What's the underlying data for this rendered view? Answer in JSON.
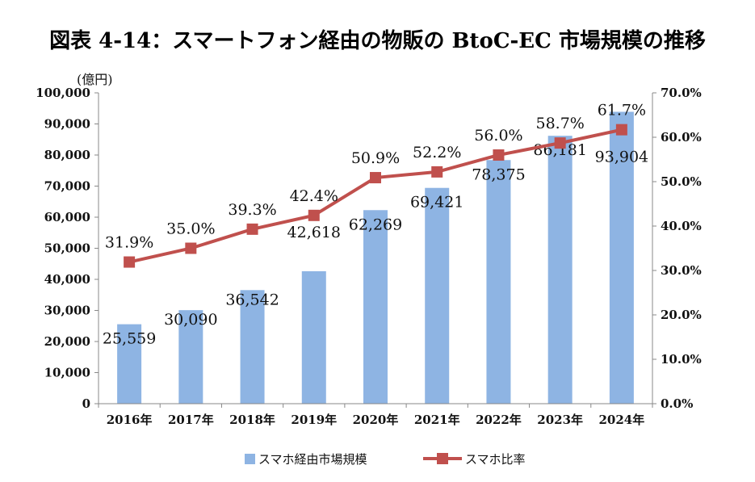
{
  "chart_data": {
    "type": "bar+line",
    "title": "図表 4-14：スマートフォン経由の物販の BtoC-EC 市場規模の推移",
    "y_unit": "(億円)",
    "categories": [
      "2016年",
      "2017年",
      "2018年",
      "2019年",
      "2020年",
      "2021年",
      "2022年",
      "2023年",
      "2024年"
    ],
    "series": [
      {
        "name": "スマホ経由市場規模",
        "type": "bar",
        "axis": "left",
        "color": "#8EB4E3",
        "values": [
          25559,
          30090,
          36542,
          42618,
          62269,
          69421,
          78375,
          86181,
          93904
        ],
        "labels": [
          "25,559",
          "30,090",
          "36,542",
          "42,618",
          "62,269",
          "69,421",
          "78,375",
          "86,181",
          "93,904"
        ]
      },
      {
        "name": "スマホ比率",
        "type": "line",
        "axis": "right",
        "color": "#C0504D",
        "values": [
          31.9,
          35.0,
          39.3,
          42.4,
          50.9,
          52.2,
          56.0,
          58.7,
          61.7
        ],
        "labels": [
          "31.9%",
          "35.0%",
          "39.3%",
          "42.4%",
          "50.9%",
          "52.2%",
          "56.0%",
          "58.7%",
          "61.7%"
        ]
      }
    ],
    "left_axis": {
      "min": 0,
      "max": 100000,
      "ticks": [
        0,
        10000,
        20000,
        30000,
        40000,
        50000,
        60000,
        70000,
        80000,
        90000,
        100000
      ],
      "tick_labels": [
        "0",
        "10,000",
        "20,000",
        "30,000",
        "40,000",
        "50,000",
        "60,000",
        "70,000",
        "80,000",
        "90,000",
        "100,000"
      ]
    },
    "right_axis": {
      "min": 0,
      "max": 70,
      "ticks": [
        0,
        10,
        20,
        30,
        40,
        50,
        60,
        70
      ],
      "tick_labels": [
        "0.0%",
        "10.0%",
        "20.0%",
        "30.0%",
        "40.0%",
        "50.0%",
        "60.0%",
        "70.0%"
      ]
    },
    "legend_position": "bottom",
    "grid": false
  }
}
